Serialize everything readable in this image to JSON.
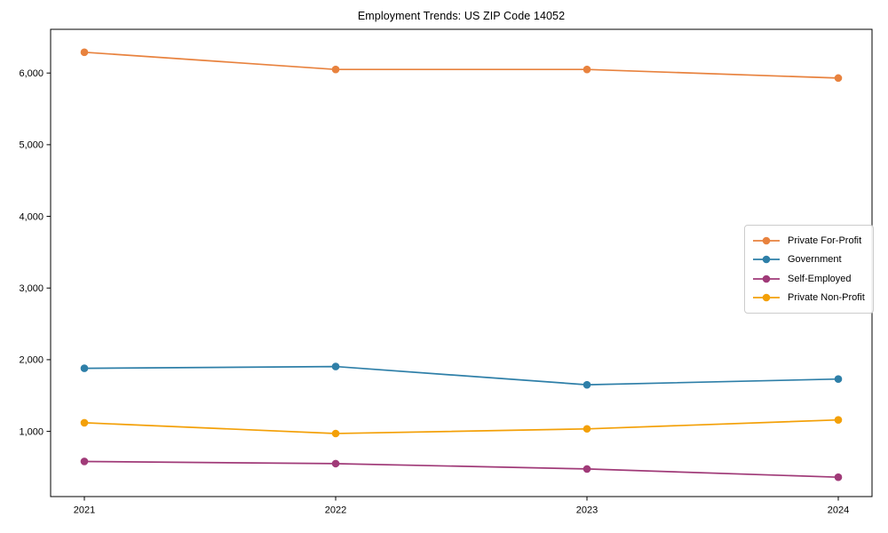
{
  "title": "Employment Trends: US ZIP Code 14052",
  "chart_data": {
    "type": "line",
    "title": "Employment Trends: US ZIP Code 14052",
    "x": [
      2021,
      2022,
      2023,
      2024
    ],
    "xtick_labels": [
      "2021",
      "2022",
      "2023",
      "2024"
    ],
    "yticks": [
      1000,
      2000,
      3000,
      4000,
      5000,
      6000
    ],
    "ytick_labels": [
      "1,000",
      "2,000",
      "3,000",
      "4,000",
      "5,000",
      "6,000"
    ],
    "ylim": [
      90,
      6610
    ],
    "grid": false,
    "legend_position": "center-right",
    "xlabel": "",
    "ylabel": "",
    "series": [
      {
        "name": "Private For-Profit",
        "color": "#e8823e",
        "values": [
          6290,
          6050,
          6050,
          5930
        ]
      },
      {
        "name": "Government",
        "color": "#2e7fa8",
        "values": [
          1880,
          1905,
          1650,
          1730
        ]
      },
      {
        "name": "Self-Employed",
        "color": "#a03a78",
        "values": [
          580,
          550,
          475,
          360
        ]
      },
      {
        "name": "Private Non-Profit",
        "color": "#f3a008",
        "values": [
          1120,
          970,
          1035,
          1160
        ]
      }
    ]
  }
}
